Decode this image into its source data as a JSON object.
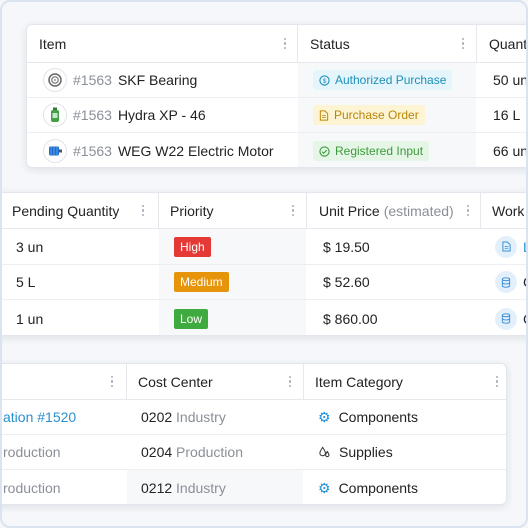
{
  "items_table": {
    "headers": {
      "item": "Item",
      "status": "Status",
      "quantity": "Quant"
    },
    "rows": [
      {
        "code": "#1563",
        "name": "SKF Bearing",
        "status": "Authorized Purchase",
        "status_icon": "dollar-circle-icon",
        "quantity": "50 un",
        "thumb_icon": "bearing-icon"
      },
      {
        "code": "#1563",
        "name": "Hydra XP - 46",
        "status": "Purchase Order",
        "status_icon": "document-icon",
        "quantity": "16 L",
        "thumb_icon": "oil-bottle-icon"
      },
      {
        "code": "#1563",
        "name": "WEG W22 Electric Motor",
        "status": "Registered Input",
        "status_icon": "check-circle-icon",
        "quantity": "66 un",
        "thumb_icon": "motor-icon"
      }
    ]
  },
  "pending_table": {
    "headers": {
      "pending_quantity": "Pending Quantity",
      "priority": "Priority",
      "unit_price": "Unit Price",
      "unit_price_note": "(estimated)",
      "work": "Work"
    },
    "rows": [
      {
        "pending_quantity": "3 un",
        "priority": "High",
        "priority_color": "#e53935",
        "unit_price": "$ 19.50",
        "work_text": "L",
        "work_icon": "document-icon"
      },
      {
        "pending_quantity": "5 L",
        "priority": "Medium",
        "priority_color": "#e6940a",
        "unit_price": "$ 52.60",
        "work_text": "C",
        "work_icon": "database-icon"
      },
      {
        "pending_quantity": "1 un",
        "priority": "Low",
        "priority_color": "#3faa3f",
        "unit_price": "$ 860.00",
        "work_text": "C",
        "work_icon": "database-icon"
      }
    ]
  },
  "cost_table": {
    "headers": {
      "cost_center": "Cost Center",
      "item_category": "Item Category"
    },
    "rows": [
      {
        "origin": "ation #1520",
        "cost_code": "0202",
        "cost_name": "Industry",
        "category": "Components",
        "category_icon": "gear-icon"
      },
      {
        "origin": "roduction",
        "cost_code": "0204",
        "cost_name": "Production",
        "category": "Supplies",
        "category_icon": "drops-icon"
      },
      {
        "origin": "roduction",
        "cost_code": "0212",
        "cost_name": "Industry",
        "category": "Components",
        "category_icon": "gear-icon"
      }
    ]
  }
}
